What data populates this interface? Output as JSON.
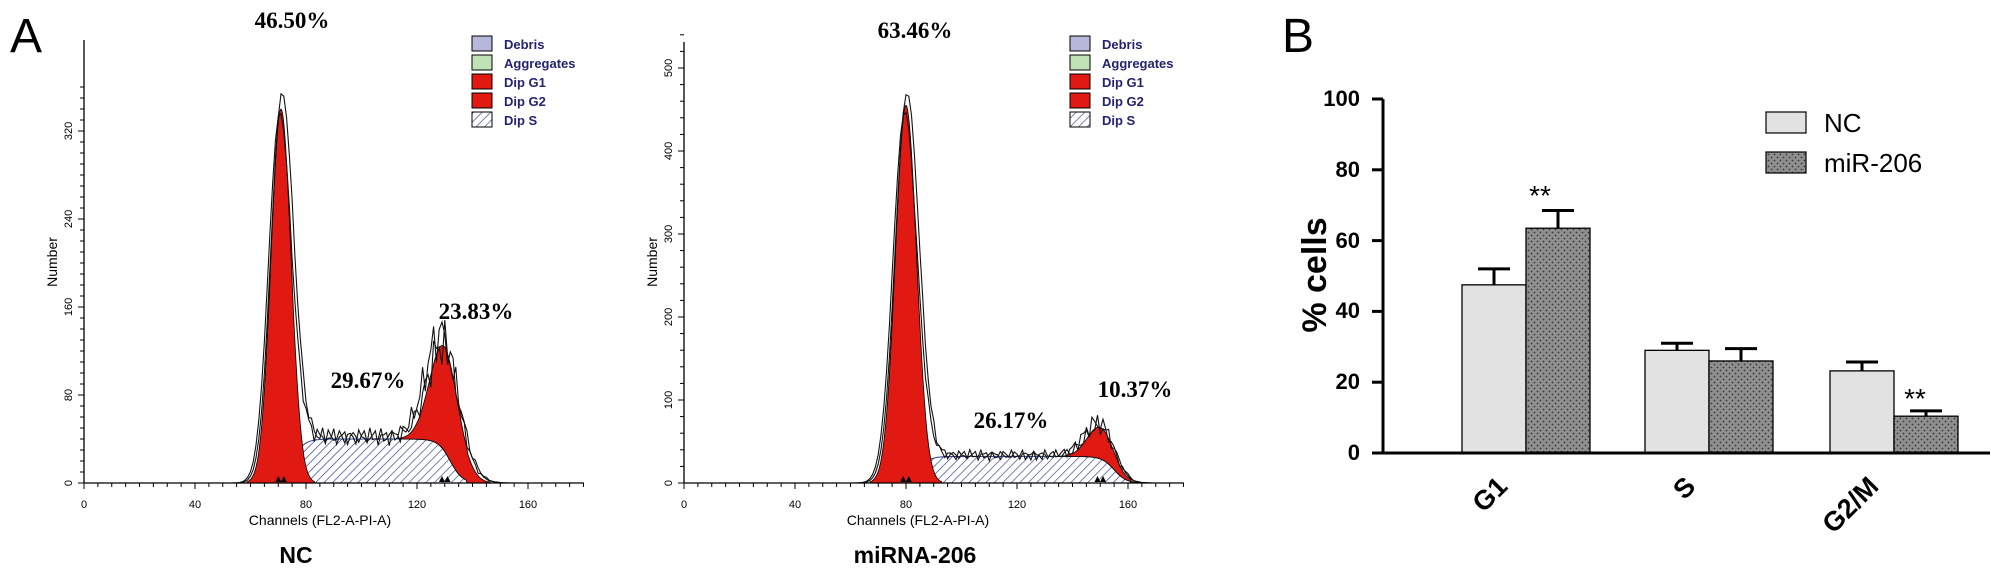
{
  "panel_a": {
    "letter": "A",
    "x_axis_label": "Channels (FL2-A-PI-A)",
    "y_axis_label": "Number",
    "legend": [
      {
        "label": "Debris",
        "color": "#b7b7d9",
        "pattern": "solid"
      },
      {
        "label": "Aggregates",
        "color": "#bfe3b6",
        "pattern": "solid"
      },
      {
        "label": "Dip G1",
        "color": "#e01a12",
        "pattern": "solid"
      },
      {
        "label": "Dip G2",
        "color": "#e01a12",
        "pattern": "solid"
      },
      {
        "label": "Dip S",
        "color": "#ffffff",
        "pattern": "hatch"
      }
    ],
    "nc": {
      "sample": "NC",
      "x_ticks": [
        "0",
        "40",
        "80",
        "120",
        "160"
      ],
      "y_ticks": [
        "0",
        "80",
        "160",
        "240",
        "320"
      ],
      "g1_pct": "46.50%",
      "s_pct": "29.67%",
      "g2_pct": "23.83%"
    },
    "mirna": {
      "sample": "miRNA-206",
      "x_ticks": [
        "0",
        "40",
        "80",
        "120",
        "160"
      ],
      "y_ticks": [
        "0",
        "100",
        "200",
        "300",
        "400",
        "500"
      ],
      "g1_pct": "63.46%",
      "s_pct": "26.17%",
      "g2_pct": "10.37%"
    }
  },
  "panel_b": {
    "letter": "B",
    "ylabel": "% cells",
    "yticks": [
      "0",
      "20",
      "40",
      "60",
      "80",
      "100"
    ],
    "legend": [
      {
        "label": "NC",
        "color": "#e2e2e2",
        "pattern": "solid"
      },
      {
        "label": "miR-206",
        "color": "#8f8f8f",
        "pattern": "dotted"
      }
    ],
    "significance_marker": "**"
  },
  "chart_data": [
    {
      "type": "area",
      "title": "NC",
      "xlabel": "Channels (FL2-A-PI-A)",
      "ylabel": "Number",
      "xlim": [
        0,
        180
      ],
      "ylim": [
        0,
        360
      ],
      "series": [
        {
          "name": "Dip G1",
          "center": 71,
          "peak": 340
        },
        {
          "name": "Dip S",
          "from": 75,
          "to": 132,
          "level": 40
        },
        {
          "name": "Dip G2",
          "center": 130,
          "peak": 95
        }
      ],
      "annotations": [
        "46.50%",
        "29.67%",
        "23.83%"
      ]
    },
    {
      "type": "area",
      "title": "miRNA-206",
      "xlabel": "Channels (FL2-A-PI-A)",
      "ylabel": "Number",
      "xlim": [
        0,
        180
      ],
      "ylim": [
        0,
        540
      ],
      "series": [
        {
          "name": "Dip G1",
          "center": 80,
          "peak": 455
        },
        {
          "name": "Dip S",
          "from": 84,
          "to": 155,
          "level": 32
        },
        {
          "name": "Dip G2",
          "center": 150,
          "peak": 38
        }
      ],
      "annotations": [
        "63.46%",
        "26.17%",
        "10.37%"
      ]
    },
    {
      "type": "bar",
      "categories": [
        "G1",
        "S",
        "G2/M"
      ],
      "ylabel": "% cells",
      "ylim": [
        0,
        100
      ],
      "series": [
        {
          "name": "NC",
          "values": [
            47.5,
            29,
            23.2
          ],
          "errors": [
            4.5,
            2,
            2.5
          ]
        },
        {
          "name": "miR-206",
          "values": [
            63.5,
            26,
            10.4
          ],
          "errors": [
            5,
            3.5,
            1.5
          ]
        }
      ],
      "significance": [
        {
          "category": "G1",
          "series": "miR-206",
          "label": "**"
        },
        {
          "category": "G2/M",
          "series": "miR-206",
          "label": "**"
        }
      ]
    }
  ]
}
